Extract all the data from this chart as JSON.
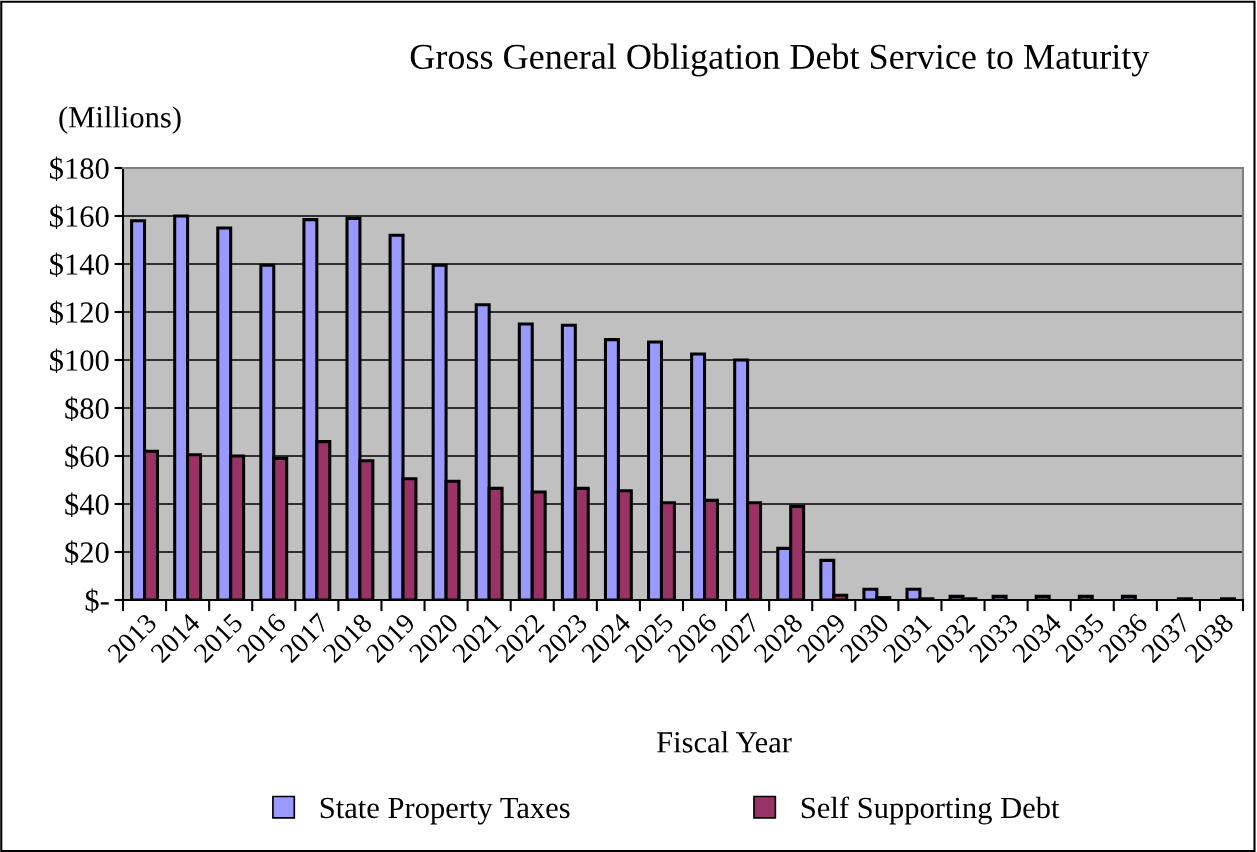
{
  "chart_data": {
    "type": "bar",
    "title": "Gross General Obligation Debt Service to Maturity",
    "ylabel": "(Millions)",
    "xlabel": "Fiscal Year",
    "categories": [
      "2013",
      "2014",
      "2015",
      "2016",
      "2017",
      "2018",
      "2019",
      "2020",
      "2021",
      "2022",
      "2023",
      "2024",
      "2025",
      "2026",
      "2027",
      "2028",
      "2029",
      "2030",
      "2031",
      "2032",
      "2033",
      "2034",
      "2035",
      "2036",
      "2037",
      "2038"
    ],
    "series": [
      {
        "name": "State Property Taxes",
        "color": "#9999ff",
        "values": [
          158,
          160,
          155,
          139.5,
          158.5,
          159,
          152,
          139.5,
          123,
          115,
          114.5,
          108.5,
          107.5,
          102.5,
          100,
          21.5,
          16.5,
          4.5,
          4.5,
          1.5,
          1.5,
          1.5,
          1.5,
          1.5,
          null,
          null
        ]
      },
      {
        "name": "Self Supporting Debt",
        "color": "#993366",
        "values": [
          62,
          60.5,
          60,
          59,
          66,
          58,
          50.5,
          49.5,
          46.5,
          45,
          46.5,
          45.5,
          40.5,
          41.5,
          40.5,
          39,
          2,
          1,
          0.5,
          0.5,
          null,
          null,
          null,
          null,
          0.5,
          0.5
        ]
      }
    ],
    "ylim": [
      0,
      180
    ],
    "yticks": [
      {
        "value": 0,
        "label": "$-"
      },
      {
        "value": 20,
        "label": "$20"
      },
      {
        "value": 40,
        "label": "$40"
      },
      {
        "value": 60,
        "label": "$60"
      },
      {
        "value": 80,
        "label": "$80"
      },
      {
        "value": 100,
        "label": "$100"
      },
      {
        "value": 120,
        "label": "$120"
      },
      {
        "value": 140,
        "label": "$140"
      },
      {
        "value": 160,
        "label": "$160"
      },
      {
        "value": 180,
        "label": "$180"
      }
    ],
    "grid": "y",
    "legend": "bottom"
  }
}
